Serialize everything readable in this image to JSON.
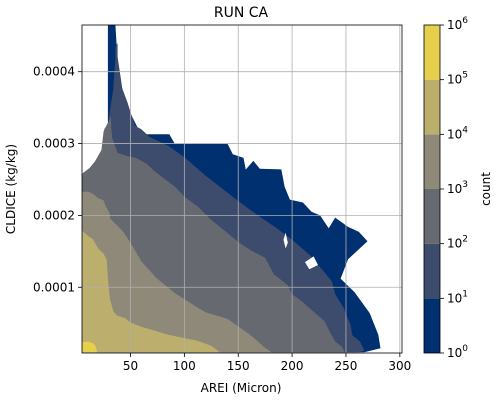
{
  "chart_data": {
    "type": "contourf",
    "title": "RUN CA",
    "xlabel": "AREI (Micron)",
    "ylabel": "CLDICE (kg/kg)",
    "xlim": [
      5,
      302
    ],
    "ylim": [
      8.5e-06,
      0.000465
    ],
    "x_ticks": [
      50,
      100,
      150,
      200,
      250,
      300
    ],
    "x_tick_labels": [
      "50",
      "100",
      "150",
      "200",
      "250",
      "300"
    ],
    "y_ticks": [
      0.0001,
      0.0002,
      0.0003,
      0.0004
    ],
    "y_tick_labels": [
      "0.0001",
      "0.0002",
      "0.0003",
      "0.0004"
    ],
    "grid": true,
    "colorbar": {
      "label": "count",
      "scale": "log",
      "levels": [
        1,
        10,
        100,
        1000,
        10000,
        100000,
        1000000
      ],
      "tick_labels": [
        {
          "base": "10",
          "exp": "0"
        },
        {
          "base": "10",
          "exp": "1"
        },
        {
          "base": "10",
          "exp": "2"
        },
        {
          "base": "10",
          "exp": "3"
        },
        {
          "base": "10",
          "exp": "4"
        },
        {
          "base": "10",
          "exp": "5"
        },
        {
          "base": "10",
          "exp": "6"
        }
      ],
      "colors": [
        "#00306f",
        "#3d4b6d",
        "#666970",
        "#8f8979",
        "#bcae6c",
        "#e6cf4d"
      ]
    },
    "contours": [
      {
        "level": "10^0 - 10^1",
        "color": "#00306f",
        "points": [
          [
            29,
            0.0004655
          ],
          [
            36,
            0.0004655
          ],
          [
            37,
            0.00044
          ],
          [
            38,
            0.00042
          ],
          [
            44,
            0.00036
          ],
          [
            58,
            0.000318
          ],
          [
            64,
            0.000313
          ],
          [
            86,
            0.000313
          ],
          [
            91,
            0.0003
          ],
          [
            140,
            0.0003
          ],
          [
            142,
            0.000294
          ],
          [
            145,
            0.000285
          ],
          [
            155,
            0.00028
          ],
          [
            157,
            0.000264
          ],
          [
            164,
            0.000276
          ],
          [
            170,
            0.000265
          ],
          [
            190,
            0.000264
          ],
          [
            193,
            0.00024
          ],
          [
            198,
            0.000222
          ],
          [
            210,
            0.000218
          ],
          [
            218,
            0.000205
          ],
          [
            226,
            0.0002
          ],
          [
            234,
            0.000182
          ],
          [
            240,
            0.000197
          ],
          [
            252,
            0.000184
          ],
          [
            262,
            0.000177
          ],
          [
            270,
            0.000164
          ],
          [
            252,
            0.000139
          ],
          [
            245,
            0.000112
          ],
          [
            258,
            9.3e-05
          ],
          [
            272,
            6.4e-05
          ],
          [
            280,
            3.4e-05
          ],
          [
            282,
            1.5e-05
          ],
          [
            267,
            9.5e-06
          ],
          [
            240,
            9.5e-06
          ],
          [
            200,
            9.5e-06
          ],
          [
            29,
            9.5e-06
          ]
        ]
      },
      {
        "level": "10^1 - 10^2",
        "color": "#3d4b6d",
        "points": [
          [
            14,
            0.000262
          ],
          [
            20,
            0.000277
          ],
          [
            25,
            0.000287
          ],
          [
            27,
            0.000295
          ],
          [
            30,
            0.000335
          ],
          [
            32,
            0.000357
          ],
          [
            34,
            0.000375
          ],
          [
            35,
            0.000398
          ],
          [
            36,
            0.000418
          ],
          [
            36,
            0.000434
          ],
          [
            38,
            0.00044
          ],
          [
            38,
            0.000418
          ],
          [
            42,
            0.000378
          ],
          [
            47,
            0.000358
          ],
          [
            54,
            0.000325
          ],
          [
            60,
            0.00032
          ],
          [
            68,
            0.000309
          ],
          [
            85,
            0.000297
          ],
          [
            100,
            0.000281
          ],
          [
            120,
            0.000255
          ],
          [
            150,
            0.00022
          ],
          [
            170,
            0.000198
          ],
          [
            185,
            0.000183
          ],
          [
            200,
            0.000166
          ],
          [
            217,
            0.000144
          ],
          [
            230,
            0.000121
          ],
          [
            237,
            0.000108
          ],
          [
            240,
            9.05e-05
          ],
          [
            244,
            8.05e-05
          ],
          [
            248,
            7.1e-05
          ],
          [
            250,
            6.2e-05
          ],
          [
            254,
            4.9e-05
          ],
          [
            256,
            3.3e-05
          ],
          [
            263,
            2.45e-05
          ],
          [
            267,
            1.2e-05
          ],
          [
            262,
            9.5e-06
          ],
          [
            240,
            9.5e-06
          ],
          [
            200,
            9.5e-06
          ],
          [
            14,
            9.5e-06
          ]
        ]
      },
      {
        "level": "10^2 - 10^3",
        "color": "#666970",
        "points": [
          [
            5,
            0.000258
          ],
          [
            12,
            0.000266
          ],
          [
            17,
            0.000275
          ],
          [
            23,
            0.000291
          ],
          [
            24,
            0.000304
          ],
          [
            25,
            0.000316
          ],
          [
            26,
            0.000321
          ],
          [
            27,
            0.000323
          ],
          [
            29,
            0.000329
          ],
          [
            32,
            0.000338
          ],
          [
            32,
            0.000324
          ],
          [
            33,
            0.000308
          ],
          [
            38,
            0.000287
          ],
          [
            46,
            0.000283
          ],
          [
            55,
            0.00028
          ],
          [
            65,
            0.000272
          ],
          [
            72,
            0.000262
          ],
          [
            92,
            0.000239
          ],
          [
            100,
            0.000226
          ],
          [
            112,
            0.000213
          ],
          [
            124,
            0.000195
          ],
          [
            138,
            0.000178
          ],
          [
            150,
            0.000163
          ],
          [
            162,
            0.000151
          ],
          [
            175,
            0.000141
          ],
          [
            183,
            0.000118
          ],
          [
            196,
            0.000103
          ],
          [
            200,
            9.05e-05
          ],
          [
            210,
            7.9e-05
          ],
          [
            220,
            6.6e-05
          ],
          [
            230,
            5.3e-05
          ],
          [
            236,
            3.5e-05
          ],
          [
            240,
            2.45e-05
          ],
          [
            246,
            1.75e-05
          ],
          [
            249,
            9.5e-06
          ],
          [
            240,
            9.5e-06
          ],
          [
            200,
            9.5e-06
          ],
          [
            5,
            9.5e-06
          ]
        ]
      },
      {
        "level": "10^3 - 10^4",
        "color": "#8f8979",
        "points": [
          [
            5,
            0.000233
          ],
          [
            11,
            0.000233
          ],
          [
            15,
            0.00023
          ],
          [
            20,
            0.000224
          ],
          [
            25,
            0.000221
          ],
          [
            27,
            0.000213
          ],
          [
            30,
            0.000205
          ],
          [
            31,
            0.000201
          ],
          [
            31,
            0.000196
          ],
          [
            35,
            0.00019
          ],
          [
            43,
            0.000178
          ],
          [
            50,
            0.000162
          ],
          [
            60,
            0.000136
          ],
          [
            74,
            0.000113
          ],
          [
            91,
            9.2e-05
          ],
          [
            112,
            7.2e-05
          ],
          [
            120,
            6.5e-05
          ],
          [
            140,
            5.6e-05
          ],
          [
            160,
            3.5e-05
          ],
          [
            168,
            2.5e-05
          ],
          [
            174,
            1.65e-05
          ],
          [
            181,
            9.5e-06
          ],
          [
            5,
            9.5e-06
          ]
        ]
      },
      {
        "level": "10^4 - 10^5",
        "color": "#bcae6c",
        "points": [
          [
            5,
            0.000179
          ],
          [
            10,
            0.000172
          ],
          [
            15,
            0.000167
          ],
          [
            20,
            0.000154
          ],
          [
            25,
            0.000147
          ],
          [
            28,
            0.000138
          ],
          [
            29,
            0.000112
          ],
          [
            31,
            8.25e-05
          ],
          [
            33,
            7.3e-05
          ],
          [
            34,
            6.7e-05
          ],
          [
            37,
            6.1e-05
          ],
          [
            45,
            5.7e-05
          ],
          [
            50,
            5.1e-05
          ],
          [
            60,
            4.5e-05
          ],
          [
            85,
            3.4e-05
          ],
          [
            112,
            2.55e-05
          ],
          [
            125,
            1.85e-05
          ],
          [
            133,
            9.5e-06
          ],
          [
            5,
            9.5e-06
          ]
        ]
      },
      {
        "level": "10^5 - 10^6",
        "color": "#e6cf4d",
        "points": [
          [
            5,
            2.35e-05
          ],
          [
            11,
            2.45e-05
          ],
          [
            16,
            2.15e-05
          ],
          [
            18,
            1.65e-05
          ],
          [
            19,
            9.5e-06
          ],
          [
            5,
            9.5e-06
          ]
        ]
      }
    ],
    "holes": [
      {
        "points": [
          [
            155,
            0.00028
          ],
          [
            157,
            0.000264
          ],
          [
            164,
            0.000276
          ],
          [
            162,
            0.000288
          ]
        ]
      },
      {
        "points": [
          [
            192,
            0.000166
          ],
          [
            194,
            0.000176
          ],
          [
            196,
            0.000162
          ],
          [
            194,
            0.000154
          ]
        ]
      },
      {
        "points": [
          [
            212,
            0.000135
          ],
          [
            220,
            0.000143
          ],
          [
            224,
            0.000131
          ],
          [
            216,
            0.000125
          ]
        ]
      }
    ]
  }
}
